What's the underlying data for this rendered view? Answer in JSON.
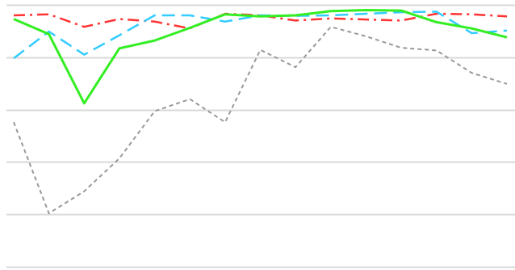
{
  "chart_data": {
    "type": "line",
    "title": "",
    "xlabel": "",
    "ylabel": "",
    "x": [
      1,
      2,
      3,
      4,
      5,
      6,
      7,
      8,
      9,
      10,
      11,
      12,
      13,
      14,
      15
    ],
    "ylim": [
      0,
      5
    ],
    "grid": true,
    "gridlines": [
      0,
      1,
      2,
      3,
      4,
      5
    ],
    "legend": "none",
    "series": [
      {
        "style": "dash-dot",
        "color": "#ff3333",
        "values": [
          4.8,
          4.82,
          4.58,
          4.73,
          4.68,
          4.55,
          4.83,
          4.8,
          4.7,
          4.74,
          4.72,
          4.7,
          4.83,
          4.82,
          4.78
        ]
      },
      {
        "style": "dashed",
        "color": "#33ccff",
        "values": [
          3.98,
          4.49,
          4.05,
          4.42,
          4.8,
          4.8,
          4.68,
          4.8,
          4.79,
          4.8,
          4.83,
          4.86,
          4.87,
          4.46,
          4.51
        ]
      },
      {
        "style": "solid",
        "color": "#33ee22",
        "values": [
          4.73,
          4.44,
          3.12,
          4.17,
          4.32,
          4.56,
          4.82,
          4.78,
          4.8,
          4.88,
          4.9,
          4.89,
          4.67,
          4.55,
          4.38
        ]
      },
      {
        "style": "dotted",
        "color": "#999999",
        "values": [
          2.76,
          1.02,
          1.44,
          2.07,
          2.97,
          3.2,
          2.76,
          4.14,
          3.81,
          4.58,
          4.4,
          4.18,
          4.13,
          3.7,
          3.49
        ]
      }
    ]
  }
}
